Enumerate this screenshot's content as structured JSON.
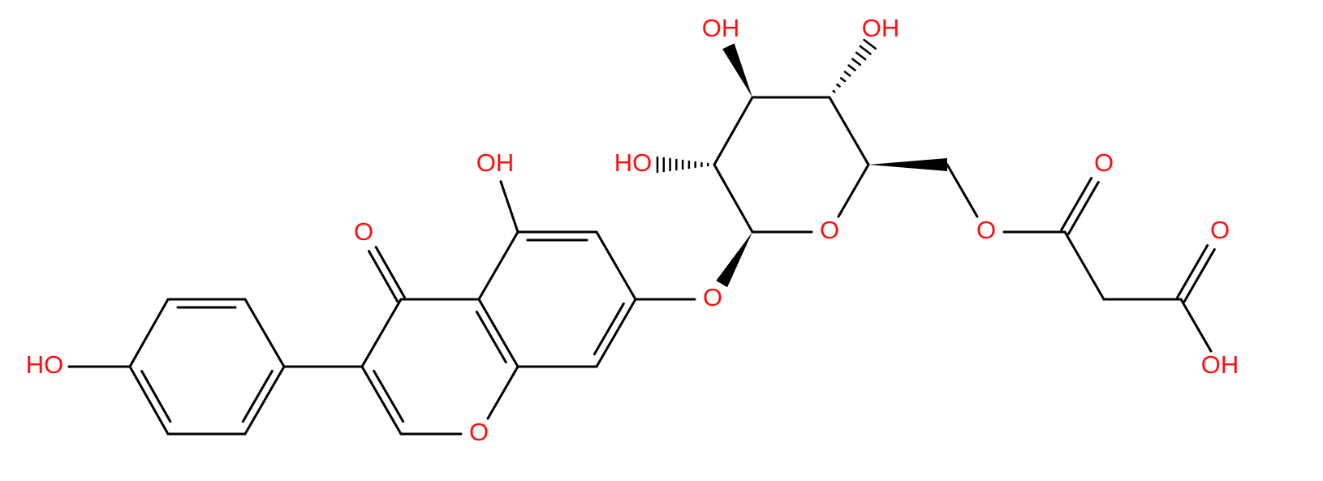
{
  "atoms": [
    "HO",
    "O",
    "OH",
    "O",
    "O",
    "O",
    "HO",
    "OH",
    "OH",
    "O",
    "O",
    "O",
    "OH"
  ]
}
